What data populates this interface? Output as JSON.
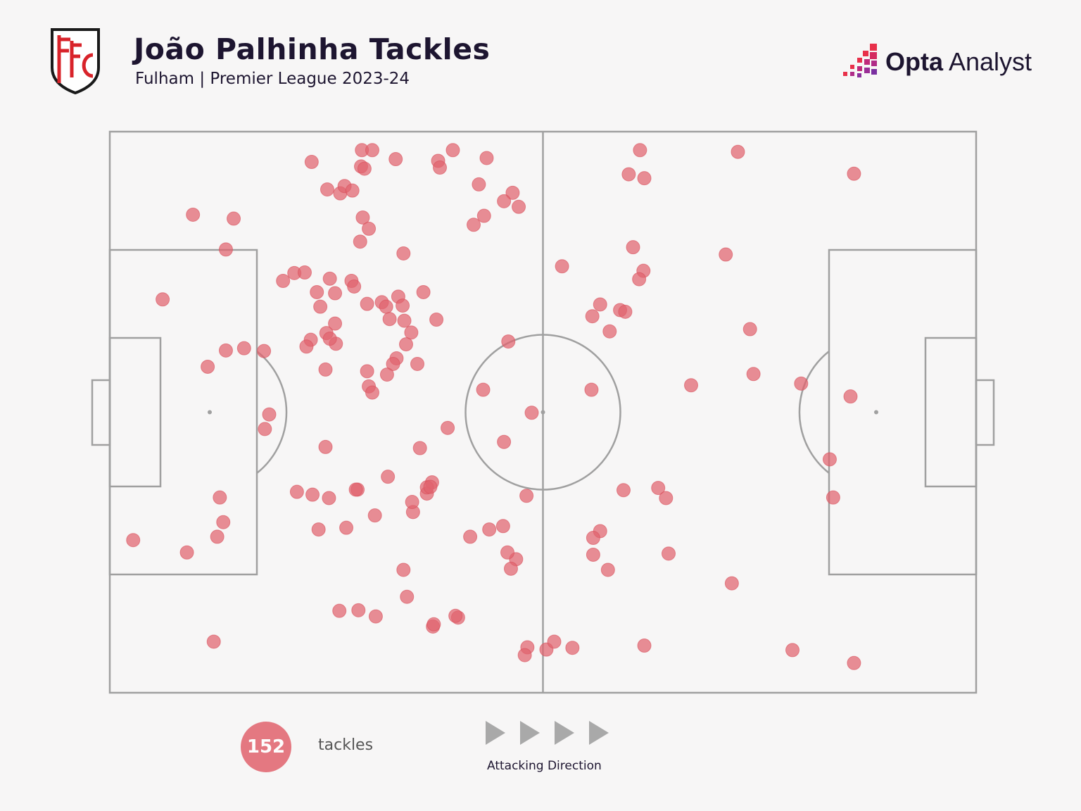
{
  "header": {
    "title": "João Palhinha Tackles",
    "subtitle": "Fulham | Premier League 2023-24"
  },
  "brand": {
    "name_bold": "Opta",
    "name_light": "Analyst",
    "accent_colors": [
      "#e8304a",
      "#c02a7a",
      "#7a2fa0"
    ]
  },
  "crest": {
    "icon": "fulham-crest-icon",
    "color": "#d8232a"
  },
  "colors": {
    "background": "#f7f6f6",
    "pitch_lines": "#a0a0a0",
    "tackle_marker": "#e1636d",
    "text": "#1d1530"
  },
  "legend": {
    "count": "152",
    "count_label": "tackles",
    "direction_label": "Attacking Direction",
    "arrow_icon": "play-triangle-icon"
  },
  "chart_data": {
    "type": "scatter",
    "title": "João Palhinha Tackles",
    "subtitle": "Fulham | Premier League 2023-24",
    "xlim": [
      0,
      100
    ],
    "ylim": [
      0,
      100
    ],
    "x_direction": "left-to-right attacking",
    "points": [
      [
        29.1,
        96.7
      ],
      [
        30.3,
        96.7
      ],
      [
        39.6,
        96.7
      ],
      [
        61.2,
        96.7
      ],
      [
        72.5,
        96.4
      ],
      [
        23.3,
        94.6
      ],
      [
        29.0,
        93.8
      ],
      [
        29.4,
        93.4
      ],
      [
        33.0,
        95.1
      ],
      [
        37.9,
        94.8
      ],
      [
        38.1,
        93.6
      ],
      [
        43.5,
        95.3
      ],
      [
        59.9,
        92.4
      ],
      [
        85.9,
        92.5
      ],
      [
        61.7,
        91.7
      ],
      [
        42.6,
        90.6
      ],
      [
        25.1,
        89.7
      ],
      [
        9.6,
        85.2
      ],
      [
        14.3,
        84.5
      ],
      [
        26.6,
        89.0
      ],
      [
        27.1,
        90.3
      ],
      [
        28.0,
        89.5
      ],
      [
        46.5,
        89.1
      ],
      [
        47.2,
        86.6
      ],
      [
        43.2,
        85.0
      ],
      [
        45.5,
        87.6
      ],
      [
        42.0,
        83.4
      ],
      [
        29.2,
        84.7
      ],
      [
        29.9,
        82.7
      ],
      [
        28.9,
        80.4
      ],
      [
        13.4,
        79.0
      ],
      [
        33.9,
        78.3
      ],
      [
        60.4,
        79.4
      ],
      [
        71.1,
        78.1
      ],
      [
        52.2,
        76.0
      ],
      [
        61.6,
        75.2
      ],
      [
        61.1,
        73.7
      ],
      [
        21.3,
        74.8
      ],
      [
        22.5,
        74.9
      ],
      [
        20.0,
        73.4
      ],
      [
        25.4,
        73.8
      ],
      [
        27.9,
        73.4
      ],
      [
        28.2,
        72.4
      ],
      [
        23.9,
        71.4
      ],
      [
        26.0,
        71.2
      ],
      [
        36.2,
        71.4
      ],
      [
        29.7,
        69.3
      ],
      [
        31.4,
        69.6
      ],
      [
        33.3,
        70.6
      ],
      [
        37.7,
        66.5
      ],
      [
        56.6,
        69.2
      ],
      [
        6.1,
        70.1
      ],
      [
        24.3,
        68.8
      ],
      [
        31.9,
        68.8
      ],
      [
        33.8,
        69.0
      ],
      [
        58.9,
        68.2
      ],
      [
        55.7,
        67.1
      ],
      [
        59.5,
        67.9
      ],
      [
        26.0,
        65.8
      ],
      [
        32.3,
        66.6
      ],
      [
        34.0,
        66.3
      ],
      [
        25.0,
        64.1
      ],
      [
        34.8,
        64.2
      ],
      [
        73.9,
        64.8
      ],
      [
        57.7,
        64.4
      ],
      [
        23.2,
        62.9
      ],
      [
        26.1,
        62.2
      ],
      [
        34.2,
        62.1
      ],
      [
        46.0,
        62.6
      ],
      [
        33.1,
        59.6
      ],
      [
        25.4,
        63.1
      ],
      [
        22.7,
        61.7
      ],
      [
        13.4,
        61.0
      ],
      [
        15.5,
        61.4
      ],
      [
        17.8,
        60.9
      ],
      [
        11.3,
        58.1
      ],
      [
        24.9,
        57.6
      ],
      [
        32.7,
        58.6
      ],
      [
        35.5,
        58.6
      ],
      [
        29.7,
        57.3
      ],
      [
        79.8,
        55.1
      ],
      [
        74.3,
        56.8
      ],
      [
        32.0,
        56.7
      ],
      [
        48.7,
        49.9
      ],
      [
        43.1,
        54.0
      ],
      [
        55.6,
        54.0
      ],
      [
        67.1,
        54.8
      ],
      [
        85.5,
        52.8
      ],
      [
        29.9,
        54.6
      ],
      [
        30.3,
        53.5
      ],
      [
        39.0,
        47.2
      ],
      [
        18.4,
        49.6
      ],
      [
        35.8,
        43.6
      ],
      [
        17.9,
        47.0
      ],
      [
        45.5,
        44.7
      ],
      [
        24.9,
        43.8
      ],
      [
        83.1,
        41.6
      ],
      [
        23.4,
        35.3
      ],
      [
        28.6,
        36.2
      ],
      [
        13.1,
        30.4
      ],
      [
        25.3,
        34.7
      ],
      [
        35.0,
        32.2
      ],
      [
        32.1,
        38.5
      ],
      [
        12.7,
        34.8
      ],
      [
        36.6,
        35.5
      ],
      [
        63.3,
        36.5
      ],
      [
        59.3,
        36.1
      ],
      [
        83.5,
        34.8
      ],
      [
        30.6,
        31.6
      ],
      [
        37.2,
        37.5
      ],
      [
        21.6,
        35.8
      ],
      [
        36.6,
        36.6
      ],
      [
        48.1,
        35.1
      ],
      [
        28.4,
        36.2
      ],
      [
        34.9,
        34.0
      ],
      [
        37.0,
        36.7
      ],
      [
        64.2,
        34.7
      ],
      [
        45.4,
        29.7
      ],
      [
        43.8,
        29.1
      ],
      [
        56.6,
        28.8
      ],
      [
        55.8,
        27.6
      ],
      [
        2.7,
        27.2
      ],
      [
        12.4,
        27.8
      ],
      [
        8.9,
        25.0
      ],
      [
        24.1,
        29.1
      ],
      [
        27.3,
        29.4
      ],
      [
        41.6,
        27.8
      ],
      [
        46.9,
        23.8
      ],
      [
        45.9,
        25.0
      ],
      [
        64.5,
        24.8
      ],
      [
        57.5,
        21.9
      ],
      [
        71.8,
        19.5
      ],
      [
        33.9,
        21.9
      ],
      [
        46.3,
        22.1
      ],
      [
        55.8,
        24.6
      ],
      [
        34.3,
        17.1
      ],
      [
        26.5,
        14.6
      ],
      [
        28.7,
        14.7
      ],
      [
        30.7,
        13.6
      ],
      [
        40.2,
        13.4
      ],
      [
        12.0,
        9.1
      ],
      [
        37.3,
        11.8
      ],
      [
        50.4,
        7.7
      ],
      [
        48.2,
        8.1
      ],
      [
        47.9,
        6.7
      ],
      [
        51.3,
        9.1
      ],
      [
        78.8,
        7.6
      ],
      [
        37.4,
        12.2
      ],
      [
        39.9,
        13.7
      ],
      [
        53.4,
        8.0
      ],
      [
        61.7,
        8.4
      ],
      [
        85.9,
        5.3
      ]
    ]
  }
}
